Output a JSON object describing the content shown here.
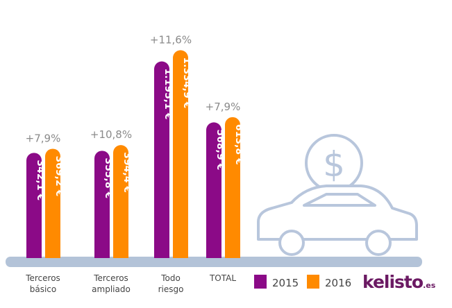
{
  "chart_data": {
    "type": "bar",
    "categories": [
      "Terceros\nbásico",
      "Terceros\nampliado",
      "Todo\nriesgo",
      "TOTAL"
    ],
    "series": [
      {
        "name": "2015",
        "values": [
          342.1,
          355.8,
          1195.1,
          568.9
        ],
        "labels": [
          "342,1 €",
          "355,8 €",
          "1.195,1 €",
          "568,9 €"
        ],
        "color": "#8b0a87"
      },
      {
        "name": "2016",
        "values": [
          369.2,
          394.4,
          1334.9,
          613.8
        ],
        "labels": [
          "369,2 €",
          "394,4 €",
          "1.334,9 €",
          "613,8 €"
        ],
        "color": "#ff8a00"
      }
    ],
    "annotations": [
      "+7,9%",
      "+10,8%",
      "+11,6%",
      "+7,9%"
    ],
    "legend": "bottom-right",
    "grid": false,
    "axis_color": "#b3c3d8"
  },
  "logo": {
    "text": "kelisto",
    "suffix": ".es",
    "color": "#6b1a63"
  },
  "illustration": "car-with-dollar-coin-icon"
}
